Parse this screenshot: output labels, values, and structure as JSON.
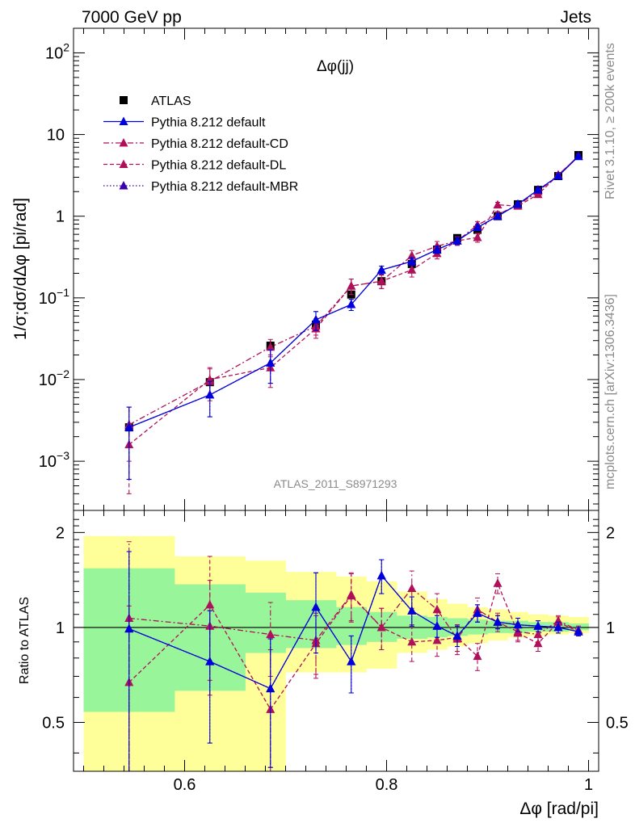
{
  "header": {
    "left": "7000 GeV pp",
    "right": "Jets"
  },
  "side_labels": {
    "rivet": "Rivet 3.1.10, ≥ 200k events",
    "mcplots": "mcplots.cern.ch [arXiv:1306.3436]"
  },
  "analysis_id": "ATLAS_2011_S8971293",
  "chart_data": [
    {
      "type": "line",
      "title": "Δφ(jj)",
      "xlabel": "Δφ [rad/pi]",
      "ylabel": "1/σ;dσ/dΔφ [pi/rad]",
      "xlim": [
        0.49,
        1.01
      ],
      "ylim": [
        0.00025,
        200
      ],
      "yscale": "log",
      "y_ticks": [
        "10^-3",
        "10^-2",
        "10^-1",
        "1",
        "10",
        "10^2"
      ],
      "legend_position": "top-left",
      "x": [
        0.545,
        0.625,
        0.685,
        0.73,
        0.765,
        0.795,
        0.825,
        0.85,
        0.87,
        0.89,
        0.91,
        0.93,
        0.95,
        0.97,
        0.99
      ],
      "series": [
        {
          "name": "ATLAS",
          "color": "#000000",
          "marker": "square",
          "line": "none",
          "values": [
            0.0026,
            0.0093,
            0.026,
            0.047,
            0.11,
            0.16,
            0.26,
            0.39,
            0.54,
            0.68,
            1.0,
            1.4,
            2.1,
            3.1,
            5.6
          ],
          "err": [
            0.0005,
            0.0015,
            0.004,
            0.006,
            0.012,
            0.016,
            0.025,
            0.035,
            0.045,
            0.055,
            0.07,
            0.09,
            0.12,
            0.16,
            0.25
          ]
        },
        {
          "name": "Pythia 8.212 default",
          "color": "#0000dd",
          "marker": "triangle",
          "line": "solid",
          "values": [
            0.0026,
            0.0065,
            0.016,
            0.054,
            0.083,
            0.22,
            0.28,
            0.39,
            0.5,
            0.73,
            1.0,
            1.4,
            2.1,
            3.1,
            5.4
          ],
          "err": [
            0.002,
            0.003,
            0.007,
            0.014,
            0.013,
            0.025,
            0.03,
            0.04,
            0.05,
            0.06,
            0.07,
            0.09,
            0.12,
            0.15,
            0.25
          ]
        },
        {
          "name": "Pythia 8.212 default-CD",
          "color": "#b0105a",
          "marker": "triangle",
          "line": "dashdot",
          "values": [
            0.0028,
            0.0095,
            0.025,
            0.045,
            0.14,
            0.16,
            0.33,
            0.43,
            0.5,
            0.78,
            1.05,
            1.37,
            2.0,
            3.2,
            5.45
          ],
          "err": [
            0.0018,
            0.004,
            0.006,
            0.01,
            0.03,
            0.03,
            0.05,
            0.06,
            0.06,
            0.08,
            0.09,
            0.1,
            0.14,
            0.18,
            0.28
          ]
        },
        {
          "name": "Pythia 8.212 default-DL",
          "color": "#b0105a",
          "marker": "triangle",
          "line": "dashed",
          "values": [
            0.0016,
            0.01,
            0.014,
            0.042,
            0.14,
            0.16,
            0.22,
            0.35,
            0.5,
            0.55,
            1.38,
            1.33,
            1.85,
            3.2,
            5.4
          ],
          "err": [
            0.0012,
            0.004,
            0.006,
            0.01,
            0.03,
            0.03,
            0.04,
            0.05,
            0.06,
            0.07,
            0.1,
            0.1,
            0.13,
            0.18,
            0.28
          ]
        },
        {
          "name": "Pythia 8.212 default-MBR",
          "color": "#3a00aa",
          "marker": "triangle",
          "line": "dotted",
          "values": [
            0.0026,
            0.0065,
            0.016,
            0.054,
            0.083,
            0.22,
            0.28,
            0.39,
            0.5,
            0.73,
            1.0,
            1.4,
            2.1,
            3.1,
            5.4
          ],
          "err": [
            0.002,
            0.003,
            0.007,
            0.014,
            0.013,
            0.025,
            0.03,
            0.04,
            0.05,
            0.06,
            0.07,
            0.09,
            0.12,
            0.15,
            0.25
          ]
        }
      ]
    },
    {
      "type": "line",
      "title": "",
      "xlabel": "Δφ [rad/pi]",
      "ylabel": "Ratio to ATLAS",
      "xlim": [
        0.49,
        1.01
      ],
      "ylim": [
        0.35,
        2.35
      ],
      "yscale": "log",
      "x_ticks": [
        "0.6",
        "0.8",
        "1"
      ],
      "y_ticks": [
        "0.5",
        "1",
        "2"
      ],
      "reference_line": 1,
      "bands": {
        "edges": [
          0.5,
          0.59,
          0.66,
          0.7,
          0.75,
          0.78,
          0.81,
          0.84,
          0.86,
          0.88,
          0.9,
          0.92,
          0.94,
          0.96,
          0.98,
          1.0
        ],
        "yellow_low": [
          0.3,
          0.3,
          0.3,
          0.72,
          0.72,
          0.74,
          0.83,
          0.85,
          0.87,
          0.89,
          0.91,
          0.93,
          0.94,
          0.95,
          0.96
        ],
        "yellow_high": [
          1.95,
          1.68,
          1.63,
          1.5,
          1.45,
          1.4,
          1.3,
          1.23,
          1.19,
          1.16,
          1.14,
          1.12,
          1.1,
          1.09,
          1.08
        ],
        "green_low": [
          0.54,
          0.63,
          0.83,
          0.86,
          0.88,
          0.9,
          0.92,
          0.93,
          0.94,
          0.95,
          0.96,
          0.96,
          0.97,
          0.97,
          0.98
        ],
        "green_high": [
          1.54,
          1.37,
          1.29,
          1.22,
          1.16,
          1.12,
          1.09,
          1.08,
          1.07,
          1.06,
          1.05,
          1.05,
          1.04,
          1.04,
          1.03
        ]
      },
      "series": [
        {
          "name": "Pythia 8.212 default",
          "color": "#0000dd",
          "line": "solid",
          "values": [
            0.99,
            0.78,
            0.64,
            1.16,
            0.78,
            1.46,
            1.13,
            1.01,
            0.94,
            1.11,
            1.04,
            1.02,
            1.01,
            1.0,
            0.97
          ],
          "err": [
            0.75,
            0.35,
            0.28,
            0.33,
            0.16,
            0.18,
            0.12,
            0.08,
            0.07,
            0.07,
            0.05,
            0.05,
            0.04,
            0.04,
            0.03
          ]
        },
        {
          "name": "Pythia 8.212 default-CD",
          "color": "#b0105a",
          "line": "dashdot",
          "values": [
            1.07,
            1.01,
            0.95,
            0.91,
            1.27,
            1.0,
            1.33,
            1.14,
            0.92,
            1.14,
            1.04,
            0.97,
            0.95,
            1.05,
            0.98
          ],
          "err": [
            0.8,
            0.4,
            0.25,
            0.2,
            0.22,
            0.15,
            0.18,
            0.14,
            0.1,
            0.1,
            0.07,
            0.06,
            0.05,
            0.04,
            0.03
          ]
        },
        {
          "name": "Pythia 8.212 default-DL",
          "color": "#b0105a",
          "line": "dashed",
          "values": [
            0.67,
            1.18,
            0.55,
            0.89,
            1.26,
            1.0,
            0.9,
            0.91,
            0.93,
            0.81,
            1.38,
            0.96,
            0.89,
            1.04,
            0.97
          ],
          "err": [
            0.5,
            0.5,
            0.3,
            0.2,
            0.22,
            0.15,
            0.12,
            0.1,
            0.09,
            0.08,
            0.1,
            0.06,
            0.05,
            0.04,
            0.03
          ]
        },
        {
          "name": "Pythia 8.212 default-MBR",
          "color": "#3a00aa",
          "line": "dotted",
          "values": [
            0.99,
            0.78,
            0.64,
            1.16,
            0.78,
            1.46,
            1.13,
            1.01,
            0.94,
            1.11,
            1.04,
            1.02,
            1.01,
            1.0,
            0.97
          ],
          "err": [
            0.75,
            0.35,
            0.28,
            0.33,
            0.16,
            0.18,
            0.12,
            0.08,
            0.07,
            0.07,
            0.05,
            0.05,
            0.04,
            0.04,
            0.03
          ]
        }
      ]
    }
  ]
}
